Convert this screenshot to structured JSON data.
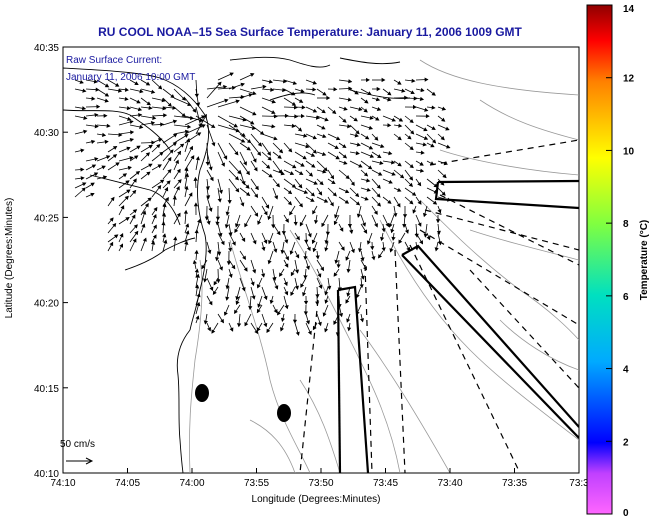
{
  "title": "RU COOL  NOAA–15  Sea Surface Temperature:  January 11, 2006 1009 GMT",
  "legend": {
    "line1": "Raw Surface Current:",
    "line2": "January 11, 2006 10:00 GMT"
  },
  "scale_label": "50 cm/s",
  "colors": {
    "title": "#1a1aa0",
    "vector": "#000000",
    "coast": "#000000",
    "contour": "#999999"
  },
  "map_data": {
    "x_axis": {
      "label": "Longitude (Degrees:Minutes)",
      "ticks": [
        "74:10",
        "74:05",
        "74:00",
        "73:55",
        "73:50",
        "73:45",
        "73:40",
        "73:35",
        "73:3"
      ]
    },
    "y_axis": {
      "label": "Latitude (Degrees:Minutes)",
      "ticks": [
        "40:35",
        "40:30",
        "40:25",
        "40:20",
        "40:15",
        "40:10"
      ]
    }
  },
  "colorbar": {
    "label": "Temperature (°C)",
    "min": 0,
    "max": 14,
    "ticks": [
      "0",
      "2",
      "4",
      "6",
      "8",
      "10",
      "12",
      "14"
    ]
  }
}
